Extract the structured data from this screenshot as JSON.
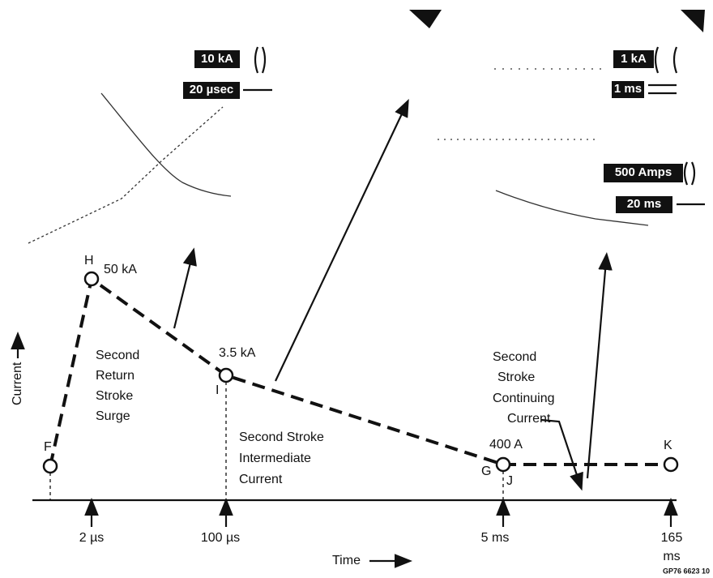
{
  "scale_labels": [
    "10 kA",
    "20 µsec",
    "1 kA",
    "1 ms",
    "500 Amps",
    "20 ms"
  ],
  "points": [
    {
      "label": "F"
    },
    {
      "label": "H",
      "value": "50 kA"
    },
    {
      "label": "I",
      "value": "3.5 kA"
    },
    {
      "label": "G",
      "value": "400 A"
    },
    {
      "label": "J"
    },
    {
      "label": "K"
    }
  ],
  "region_labels": [
    [
      "Second",
      "Return",
      "Stroke",
      "Surge"
    ],
    [
      "Second Stroke",
      "Intermediate",
      "Current"
    ],
    [
      "Second",
      "Stroke",
      "Continuing",
      "Current"
    ]
  ],
  "axis": {
    "y_label": "Current",
    "x_label": "Time",
    "ticks": [
      [
        "2 µs"
      ],
      [
        "100 µs"
      ],
      [
        "5 ms"
      ],
      [
        "165",
        "ms"
      ]
    ]
  },
  "figure_id": "GP76 6623 10"
}
